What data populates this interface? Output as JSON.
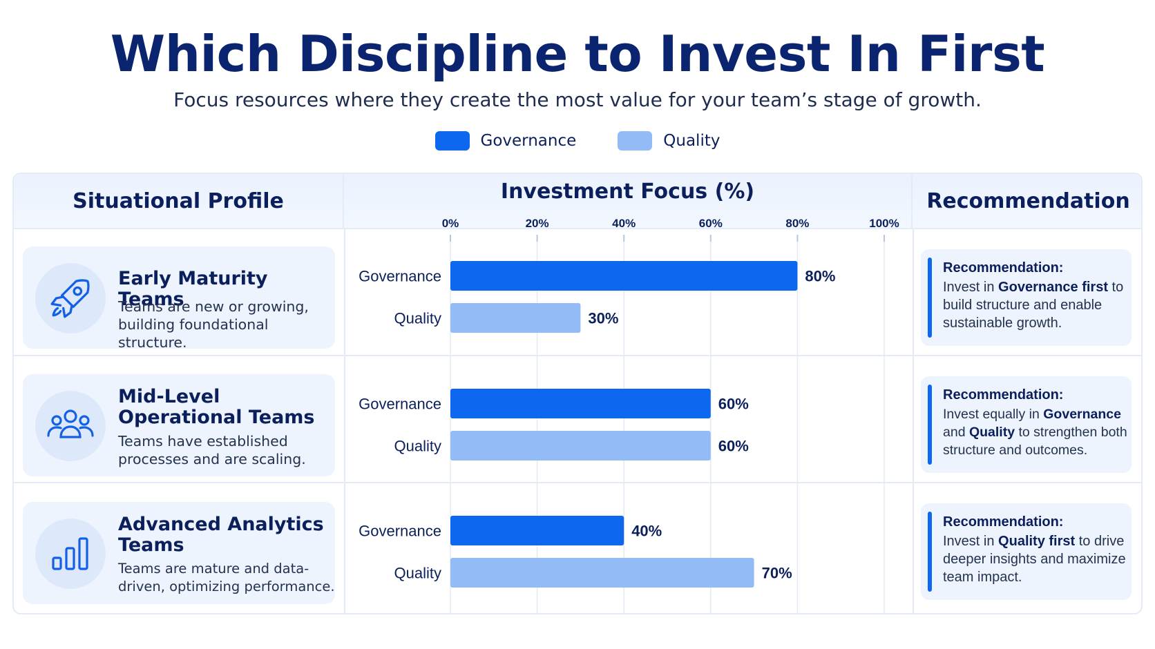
{
  "title": "Which Discipline to Invest In First",
  "subtitle": "Focus resources where they create the most value for your team’s stage of growth.",
  "legend": [
    {
      "label": "Governance",
      "color": "#0d67ef"
    },
    {
      "label": "Quality",
      "color": "#93bcf7"
    }
  ],
  "headers": {
    "profile": "Situational Profile",
    "chart": "Investment Focus (%)",
    "recommendation": "Recommendation"
  },
  "profiles": [
    {
      "title": "Early Maturity Teams",
      "desc": "Teams are new or growing, building foundational structure.",
      "icon": "rocket-icon"
    },
    {
      "title": "Mid-Level Operational Teams",
      "desc": "Teams have established processes and are scaling.",
      "icon": "people-icon"
    },
    {
      "title": "Advanced Analytics Teams",
      "desc": "Teams are mature and data-driven, optimizing performance.",
      "icon": "bar-chart-icon"
    }
  ],
  "recommendations": [
    {
      "title": "Recommendation:",
      "pre": "Invest in ",
      "b1": "Governance first",
      "mid": " to build structure and enable sustainable growth.",
      "b2": "",
      "post": ""
    },
    {
      "title": "Recommendation:",
      "pre": "Invest equally in ",
      "b1": "Governance",
      "mid": " and ",
      "b2": "Quality",
      "post": " to strengthen both structure and outcomes."
    },
    {
      "title": "Recommendation:",
      "pre": "Invest in ",
      "b1": "Quality first",
      "mid": " to drive deeper insights and maximize team impact.",
      "b2": "",
      "post": ""
    }
  ],
  "chart_data": {
    "type": "bar",
    "orientation": "horizontal",
    "title": "Investment Focus (%)",
    "xlim": [
      0,
      100
    ],
    "ticks": [
      "0%",
      "20%",
      "40%",
      "60%",
      "80%",
      "100%"
    ],
    "tick_values": [
      0,
      20,
      40,
      60,
      80,
      100
    ],
    "grid": true,
    "groups": [
      "Early Maturity Teams",
      "Mid-Level Operational Teams",
      "Advanced Analytics Teams"
    ],
    "series": [
      {
        "name": "Governance",
        "color": "#0d67ef",
        "values": [
          80,
          60,
          40
        ]
      },
      {
        "name": "Quality",
        "color": "#93bcf7",
        "values": [
          30,
          60,
          70
        ]
      }
    ],
    "value_labels": [
      [
        "80%",
        "30%"
      ],
      [
        "60%",
        "60%"
      ],
      [
        "40%",
        "70%"
      ]
    ]
  }
}
